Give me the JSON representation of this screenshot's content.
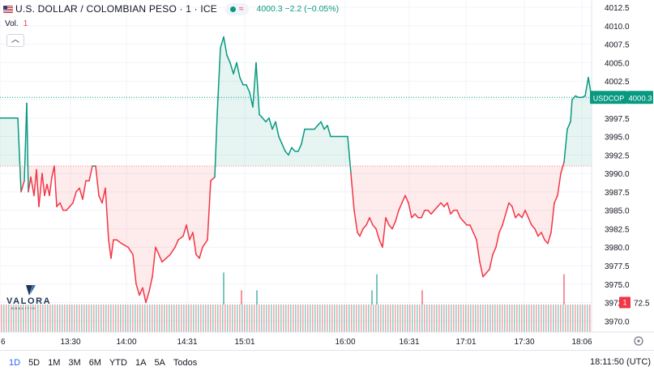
{
  "header": {
    "symbol": "U.S. DOLLAR / COLOMBIAN PESO · 1 · ICE",
    "pill_wave": "≈",
    "price_text": "4000.3 −2.2 (−0.05%)"
  },
  "volume": {
    "label": "Vol.",
    "value": "1"
  },
  "collapse_glyph": "︿",
  "logo": {
    "word": "VALORA",
    "sub": "ANALITIK"
  },
  "footer": {
    "ranges": [
      "1D",
      "5D",
      "1M",
      "3M",
      "6M",
      "YTD",
      "1A",
      "5A",
      "Todos"
    ],
    "active_range": "1D",
    "clock": "18:11:50 (UTC)"
  },
  "colors": {
    "up": "#089981",
    "down": "#f23645",
    "up_fill": "rgba(8,153,129,0.10)",
    "down_fill": "rgba(242,54,69,0.10)",
    "grid": "#f0f3fa",
    "axis_text": "#131722",
    "active_range": "#2962ff"
  },
  "chart_data": {
    "type": "area",
    "symbol_label": "USDCOP",
    "last_price": 4000.3,
    "last_price_label": "4000.3",
    "baseline": 3991.0,
    "volume_label": "72.5",
    "ylim": [
      3968.5,
      4013.5
    ],
    "y_ticks": [
      3970.0,
      3972.5,
      3975.0,
      3977.5,
      3980.0,
      3982.5,
      3985.0,
      3987.5,
      3990.0,
      3992.5,
      3995.0,
      3997.5,
      4000.0,
      4002.5,
      4005.0,
      4007.5,
      4010.0,
      4012.5
    ],
    "x_ticks": [
      {
        "label": "6",
        "t": 0
      },
      {
        "label": "13:30",
        "t": 87
      },
      {
        "label": "14:00",
        "t": 156
      },
      {
        "label": "14:31",
        "t": 231
      },
      {
        "label": "15:01",
        "t": 302
      },
      {
        "label": "16:00",
        "t": 426
      },
      {
        "label": "16:31",
        "t": 505
      },
      {
        "label": "17:01",
        "t": 575
      },
      {
        "label": "17:30",
        "t": 647
      },
      {
        "label": "18:06",
        "t": 718
      }
    ],
    "x_range": [
      0,
      748
    ],
    "series": [
      {
        "values": [
          [
            0,
            3997.5
          ],
          [
            22,
            3997.5
          ],
          [
            26,
            3987.5
          ],
          [
            30,
            3989
          ],
          [
            33,
            3999.5
          ],
          [
            35,
            3987.5
          ],
          [
            38,
            3989.5
          ],
          [
            42,
            3987
          ],
          [
            45,
            3990.5
          ],
          [
            48,
            3985.5
          ],
          [
            52,
            3990
          ],
          [
            55,
            3987
          ],
          [
            58,
            3988.5
          ],
          [
            61,
            3987
          ],
          [
            64,
            3989.5
          ],
          [
            67,
            3991
          ],
          [
            70,
            3985.5
          ],
          [
            74,
            3986
          ],
          [
            78,
            3985
          ],
          [
            82,
            3985
          ],
          [
            86,
            3985.5
          ],
          [
            90,
            3986
          ],
          [
            94,
            3987.5
          ],
          [
            98,
            3988
          ],
          [
            102,
            3986.5
          ],
          [
            106,
            3989
          ],
          [
            110,
            3989
          ],
          [
            114,
            3991
          ],
          [
            118,
            3991
          ],
          [
            122,
            3987
          ],
          [
            126,
            3986
          ],
          [
            130,
            3988
          ],
          [
            134,
            3981
          ],
          [
            137,
            3978.5
          ],
          [
            140,
            3981
          ],
          [
            144,
            3981
          ],
          [
            150,
            3980.5
          ],
          [
            158,
            3980
          ],
          [
            164,
            3979
          ],
          [
            168,
            3975
          ],
          [
            172,
            3973.5
          ],
          [
            176,
            3974.5
          ],
          [
            180,
            3972.5
          ],
          [
            184,
            3974
          ],
          [
            188,
            3976
          ],
          [
            192,
            3980
          ],
          [
            196,
            3979
          ],
          [
            200,
            3978
          ],
          [
            205,
            3978.5
          ],
          [
            210,
            3979
          ],
          [
            216,
            3980
          ],
          [
            220,
            3981
          ],
          [
            226,
            3981.5
          ],
          [
            230,
            3983
          ],
          [
            234,
            3981
          ],
          [
            238,
            3982
          ],
          [
            242,
            3979
          ],
          [
            246,
            3978.5
          ],
          [
            250,
            3980
          ],
          [
            256,
            3981
          ],
          [
            260,
            3989
          ],
          [
            265,
            3989.5
          ],
          [
            268,
            3998
          ],
          [
            272,
            4007
          ],
          [
            276,
            4008.5
          ],
          [
            280,
            4006
          ],
          [
            284,
            4005
          ],
          [
            288,
            4003.5
          ],
          [
            292,
            4005
          ],
          [
            296,
            4003
          ],
          [
            300,
            4002
          ],
          [
            304,
            4002
          ],
          [
            308,
            4001
          ],
          [
            312,
            3999
          ],
          [
            316,
            4005
          ],
          [
            320,
            3998
          ],
          [
            324,
            3997.5
          ],
          [
            328,
            3997
          ],
          [
            332,
            3997.5
          ],
          [
            336,
            3996
          ],
          [
            340,
            3997
          ],
          [
            344,
            3995
          ],
          [
            348,
            3994
          ],
          [
            352,
            3993
          ],
          [
            356,
            3992.5
          ],
          [
            360,
            3993.5
          ],
          [
            364,
            3993
          ],
          [
            368,
            3993
          ],
          [
            372,
            3994
          ],
          [
            376,
            3996
          ],
          [
            380,
            3996
          ],
          [
            384,
            3996
          ],
          [
            388,
            3996
          ],
          [
            392,
            3996.5
          ],
          [
            396,
            3997
          ],
          [
            400,
            3996
          ],
          [
            404,
            3996.5
          ],
          [
            408,
            3995
          ],
          [
            412,
            3995
          ],
          [
            416,
            3995
          ],
          [
            420,
            3995
          ],
          [
            425,
            3995
          ],
          [
            429,
            3995
          ],
          [
            433,
            3990
          ],
          [
            437,
            3985
          ],
          [
            441,
            3982
          ],
          [
            444,
            3981.5
          ],
          [
            448,
            3982.5
          ],
          [
            452,
            3983
          ],
          [
            456,
            3984
          ],
          [
            460,
            3983
          ],
          [
            464,
            3982.5
          ],
          [
            468,
            3981
          ],
          [
            472,
            3980
          ],
          [
            476,
            3984
          ],
          [
            480,
            3983
          ],
          [
            484,
            3982.5
          ],
          [
            488,
            3983.5
          ],
          [
            492,
            3985
          ],
          [
            496,
            3986
          ],
          [
            500,
            3987
          ],
          [
            504,
            3986
          ],
          [
            508,
            3984
          ],
          [
            512,
            3984.5
          ],
          [
            516,
            3984
          ],
          [
            520,
            3984
          ],
          [
            524,
            3985
          ],
          [
            528,
            3985
          ],
          [
            532,
            3984.5
          ],
          [
            536,
            3985
          ],
          [
            540,
            3985.5
          ],
          [
            544,
            3986
          ],
          [
            548,
            3985.5
          ],
          [
            552,
            3986
          ],
          [
            556,
            3984.5
          ],
          [
            560,
            3985
          ],
          [
            564,
            3985
          ],
          [
            568,
            3984
          ],
          [
            572,
            3983.5
          ],
          [
            576,
            3983
          ],
          [
            580,
            3983
          ],
          [
            584,
            3982
          ],
          [
            588,
            3981
          ],
          [
            592,
            3978
          ],
          [
            596,
            3976
          ],
          [
            600,
            3976.5
          ],
          [
            604,
            3977
          ],
          [
            608,
            3979
          ],
          [
            612,
            3980
          ],
          [
            616,
            3982
          ],
          [
            620,
            3983
          ],
          [
            624,
            3984.5
          ],
          [
            628,
            3986
          ],
          [
            632,
            3985.5
          ],
          [
            636,
            3984
          ],
          [
            640,
            3984.5
          ],
          [
            644,
            3984
          ],
          [
            648,
            3985
          ],
          [
            652,
            3984
          ],
          [
            656,
            3983
          ],
          [
            660,
            3982.5
          ],
          [
            664,
            3981.5
          ],
          [
            668,
            3982
          ],
          [
            672,
            3981
          ],
          [
            676,
            3980.5
          ],
          [
            680,
            3982
          ],
          [
            684,
            3986
          ],
          [
            688,
            3987
          ],
          [
            692,
            3990
          ],
          [
            696,
            3991.5
          ],
          [
            700,
            3996
          ],
          [
            704,
            3997
          ],
          [
            706,
            4000
          ],
          [
            710,
            4000.5
          ],
          [
            714,
            4000.3
          ],
          [
            718,
            4000.3
          ],
          [
            722,
            4000.5
          ],
          [
            726,
            4003
          ],
          [
            730,
            4000.3
          ]
        ]
      }
    ],
    "volume_bars": [
      {
        "t": 275,
        "h": 0.36,
        "color": "up"
      },
      {
        "t": 297,
        "h": 0.16,
        "color": "down"
      },
      {
        "t": 316,
        "h": 0.16,
        "color": "up"
      },
      {
        "t": 458,
        "h": 0.16,
        "color": "up"
      },
      {
        "t": 464,
        "h": 0.34,
        "color": "up"
      },
      {
        "t": 520,
        "h": 0.16,
        "color": "down"
      },
      {
        "t": 695,
        "h": 0.34,
        "color": "down"
      }
    ]
  }
}
